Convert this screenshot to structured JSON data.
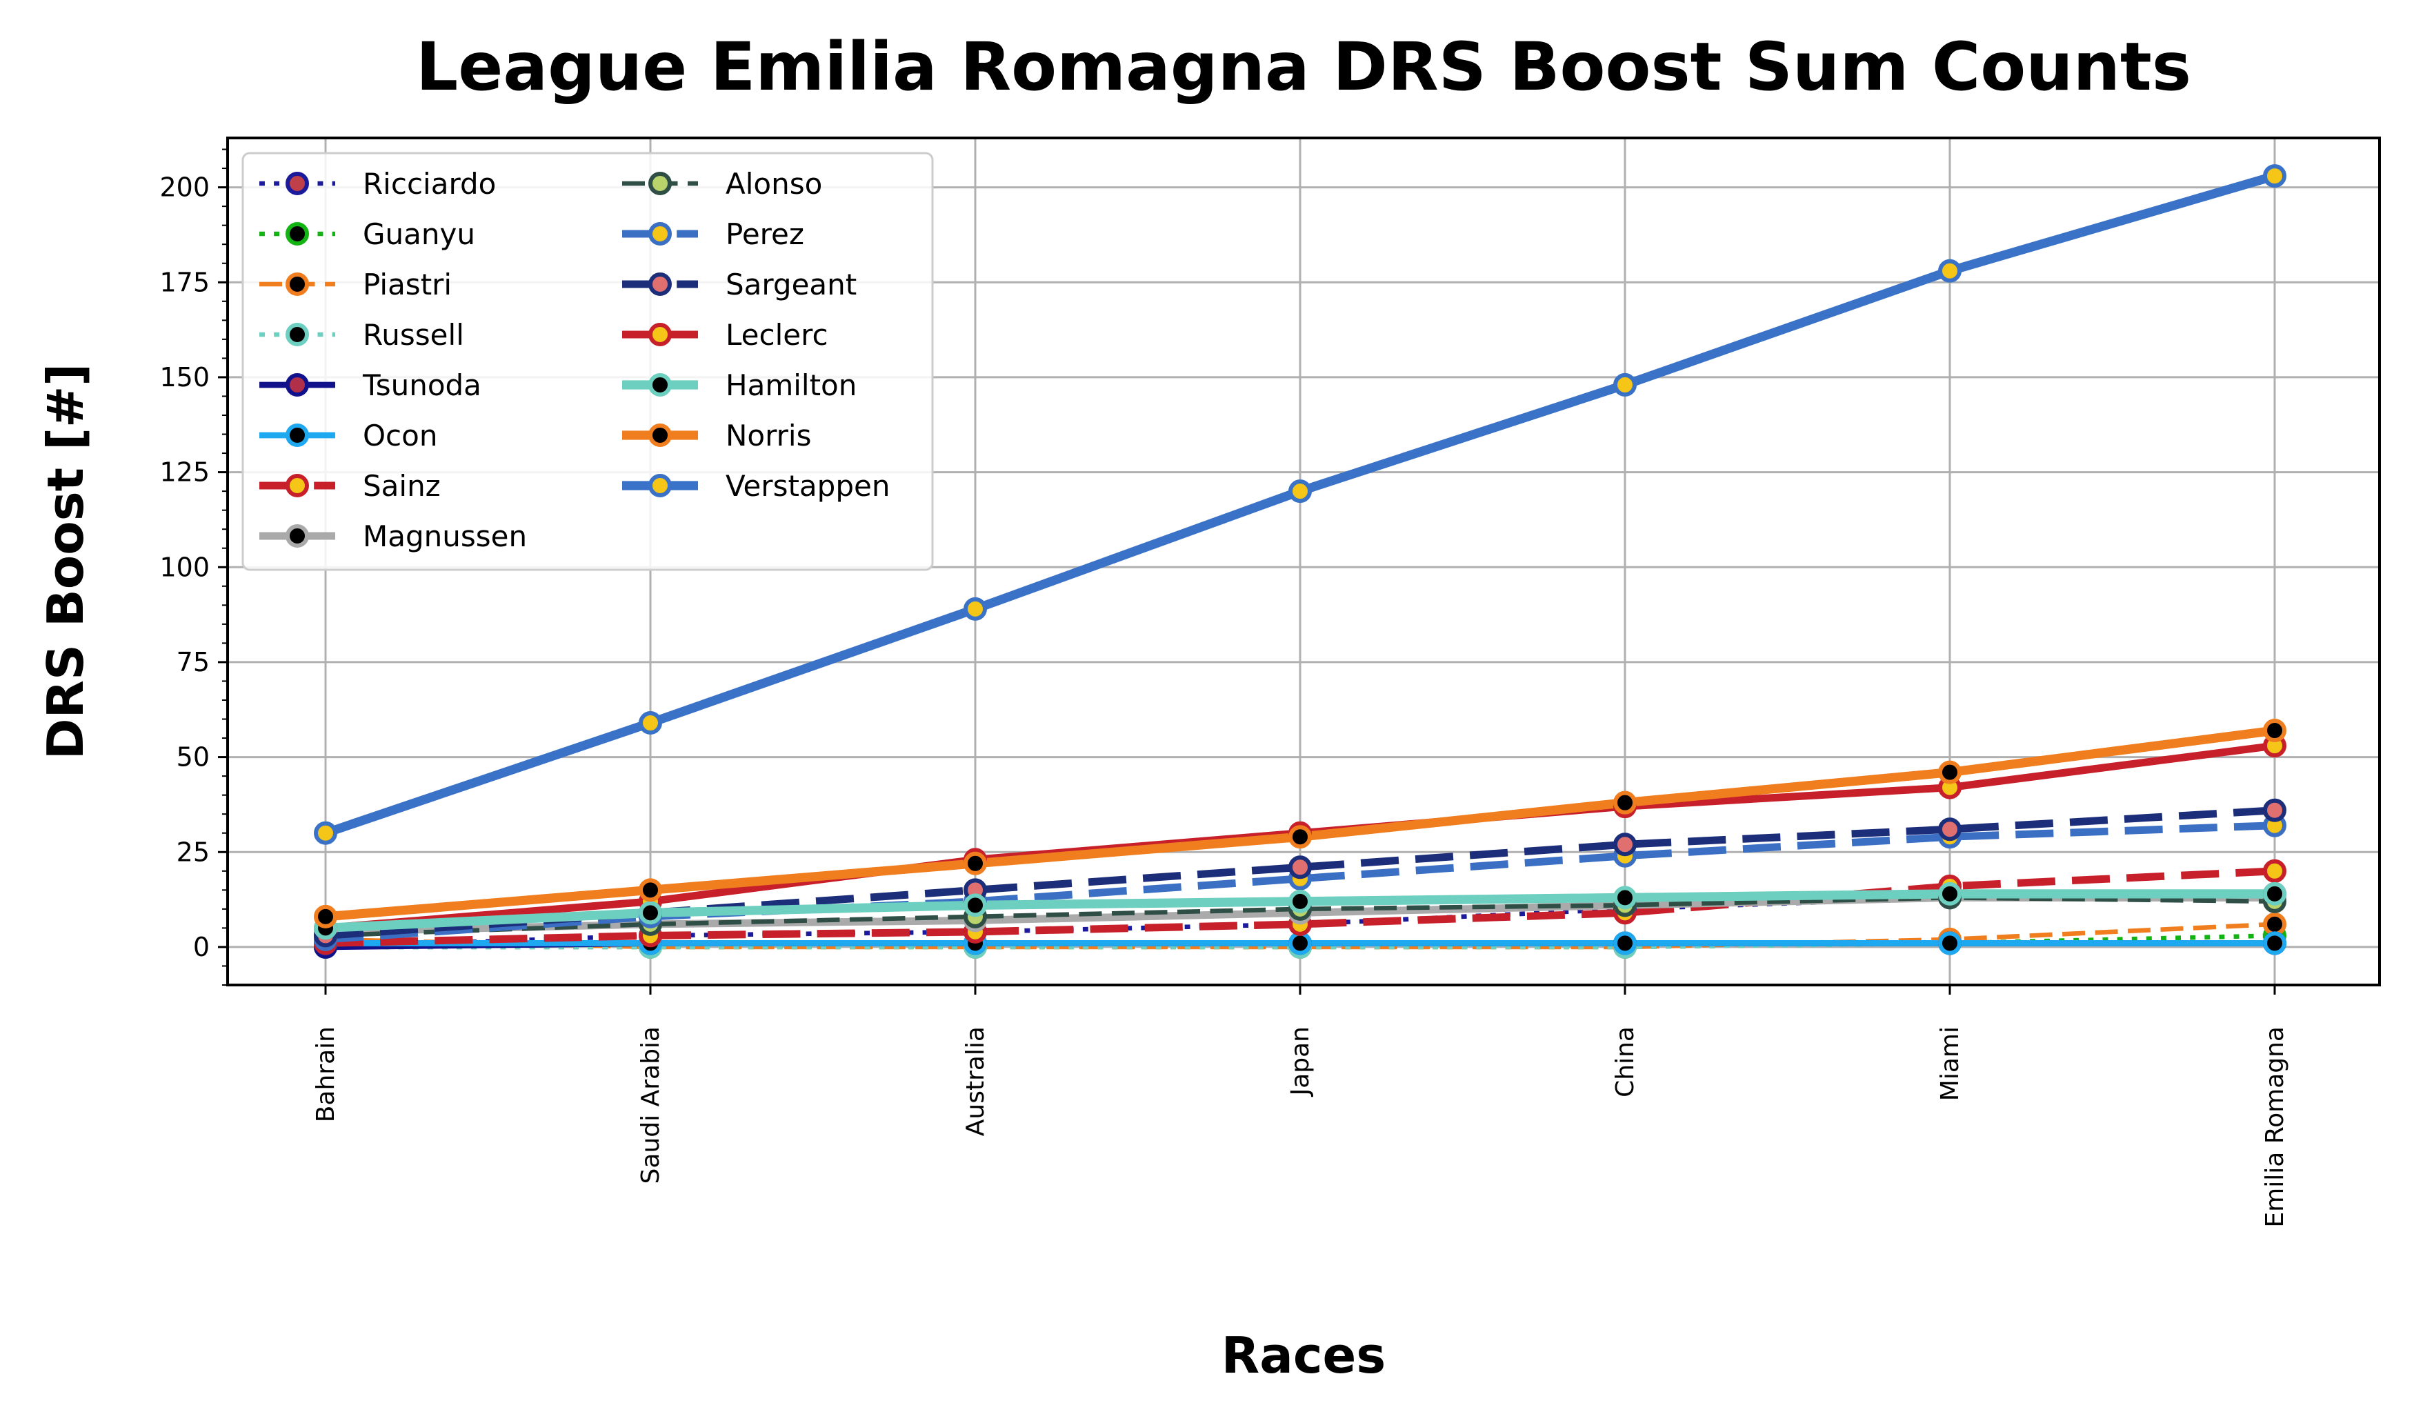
{
  "chart_data": {
    "type": "line",
    "title": "League Emilia Romagna DRS Boost Sum Counts",
    "xlabel": "Races",
    "ylabel": "DRS Boost [#]",
    "categories": [
      "Bahrain",
      "Saudi Arabia",
      "Australia",
      "Japan",
      "China",
      "Miami",
      "Emilia Romagna"
    ],
    "ylim": [
      -10,
      213
    ],
    "yticks": [
      0,
      25,
      50,
      75,
      100,
      125,
      150,
      175,
      200
    ],
    "grid": true,
    "legend_position": "top-left",
    "series": [
      {
        "name": "Ricciardo",
        "color": "#1a1a9a",
        "marker_fill": "#c0404a",
        "dash": "dotted",
        "width": 3,
        "values": [
          0,
          3,
          4,
          6,
          10,
          13,
          14
        ]
      },
      {
        "name": "Guanyu",
        "color": "#12b312",
        "marker_fill": "#000000",
        "dash": "dotted",
        "width": 3,
        "values": [
          0,
          0,
          0,
          0,
          0,
          1,
          3
        ]
      },
      {
        "name": "Piastri",
        "color": "#f07d1e",
        "marker_fill": "#000000",
        "dash": "dashed",
        "width": 3,
        "values": [
          2,
          0,
          0,
          0,
          0,
          2,
          6
        ]
      },
      {
        "name": "Russell",
        "color": "#6dcfbf",
        "marker_fill": "#000000",
        "dash": "dotted",
        "width": 3,
        "values": [
          0,
          0,
          0,
          0,
          0,
          1,
          1
        ]
      },
      {
        "name": "Tsunoda",
        "color": "#11118c",
        "marker_fill": "#b0304a",
        "dash": "solid",
        "width": 4,
        "values": [
          0,
          1,
          1,
          1,
          1,
          1,
          1
        ]
      },
      {
        "name": "Ocon",
        "color": "#1ea8f0",
        "marker_fill": "#000000",
        "dash": "solid",
        "width": 4,
        "values": [
          1,
          1,
          1,
          1,
          1,
          1,
          1
        ]
      },
      {
        "name": "Sainz",
        "color": "#c8202a",
        "marker_fill": "#f5c518",
        "dash": "dashed",
        "width": 5,
        "values": [
          1,
          3,
          4,
          6,
          9,
          16,
          20
        ]
      },
      {
        "name": "Magnussen",
        "color": "#aaaaaa",
        "marker_fill": "#000000",
        "dash": "solid",
        "width": 5,
        "values": [
          4,
          6,
          7,
          9,
          11,
          13,
          13
        ]
      },
      {
        "name": "Alonso",
        "color": "#2f4f46",
        "marker_fill": "#b8d46a",
        "dash": "dashed",
        "width": 3,
        "values": [
          3,
          6,
          8,
          10,
          11,
          13,
          12
        ]
      },
      {
        "name": "Perez",
        "color": "#3b6fc4",
        "marker_fill": "#f5c518",
        "dash": "dashed",
        "width": 5,
        "values": [
          2,
          8,
          12,
          18,
          24,
          29,
          32
        ]
      },
      {
        "name": "Sargeant",
        "color": "#1c2e7a",
        "marker_fill": "#e07070",
        "dash": "dashed",
        "width": 5,
        "values": [
          3,
          9,
          15,
          21,
          27,
          31,
          36
        ]
      },
      {
        "name": "Leclerc",
        "color": "#c8202a",
        "marker_fill": "#f5c518",
        "dash": "solid",
        "width": 5,
        "values": [
          5,
          12,
          23,
          30,
          37,
          42,
          53
        ]
      },
      {
        "name": "Hamilton",
        "color": "#6dcfbf",
        "marker_fill": "#000000",
        "dash": "solid",
        "width": 6,
        "values": [
          5,
          9,
          11,
          12,
          13,
          14,
          14
        ]
      },
      {
        "name": "Norris",
        "color": "#f07d1e",
        "marker_fill": "#000000",
        "dash": "solid",
        "width": 6,
        "values": [
          8,
          15,
          22,
          29,
          38,
          46,
          57
        ]
      },
      {
        "name": "Verstappen",
        "color": "#3a72c8",
        "marker_fill": "#f5c518",
        "dash": "solid",
        "width": 6,
        "values": [
          30,
          59,
          89,
          120,
          148,
          178,
          203
        ]
      }
    ]
  }
}
